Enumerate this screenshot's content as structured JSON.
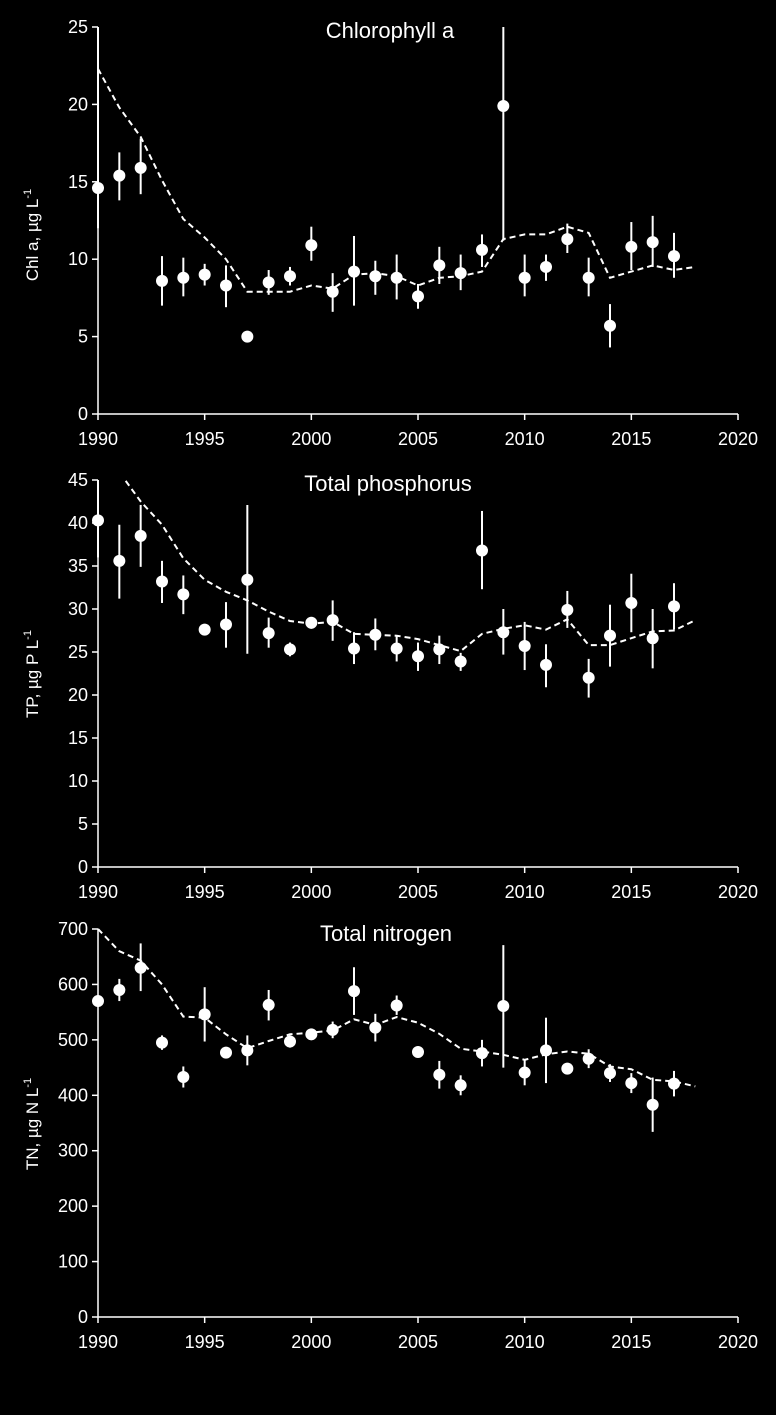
{
  "chart_data": [
    {
      "type": "scatter",
      "title": "Chlorophyll a",
      "ylabel": "Chl a, µg L",
      "ylabel_sup": "-1",
      "xlim": [
        1990,
        2020
      ],
      "ylim": [
        0,
        25
      ],
      "xticks": [
        1990,
        1995,
        2000,
        2005,
        2010,
        2015,
        2020
      ],
      "yticks": [
        0,
        5,
        10,
        15,
        20,
        25
      ],
      "points": [
        {
          "x": 1990,
          "y": 14.6,
          "lo": 12.0,
          "hi": 25.0
        },
        {
          "x": 1991,
          "y": 15.4,
          "lo": 13.8,
          "hi": 16.9
        },
        {
          "x": 1992,
          "y": 15.9,
          "lo": 14.2,
          "hi": 17.8
        },
        {
          "x": 1993,
          "y": 8.6,
          "lo": 7.0,
          "hi": 10.2
        },
        {
          "x": 1994,
          "y": 8.8,
          "lo": 7.6,
          "hi": 10.1
        },
        {
          "x": 1995,
          "y": 9.0,
          "lo": 8.3,
          "hi": 9.7
        },
        {
          "x": 1996,
          "y": 8.3,
          "lo": 6.9,
          "hi": 9.6
        },
        {
          "x": 1997,
          "y": 5.0,
          "lo": 4.7,
          "hi": 5.3
        },
        {
          "x": 1998,
          "y": 8.5,
          "lo": 7.7,
          "hi": 9.3
        },
        {
          "x": 1999,
          "y": 8.9,
          "lo": 8.3,
          "hi": 9.5
        },
        {
          "x": 2000,
          "y": 10.9,
          "lo": 9.9,
          "hi": 12.1
        },
        {
          "x": 2001,
          "y": 7.9,
          "lo": 6.6,
          "hi": 9.1
        },
        {
          "x": 2002,
          "y": 9.2,
          "lo": 7.0,
          "hi": 11.5
        },
        {
          "x": 2003,
          "y": 8.9,
          "lo": 7.7,
          "hi": 9.9
        },
        {
          "x": 2004,
          "y": 8.8,
          "lo": 7.4,
          "hi": 10.3
        },
        {
          "x": 2005,
          "y": 7.6,
          "lo": 6.8,
          "hi": 8.4
        },
        {
          "x": 2006,
          "y": 9.6,
          "lo": 8.4,
          "hi": 10.8
        },
        {
          "x": 2007,
          "y": 9.1,
          "lo": 8.0,
          "hi": 10.3
        },
        {
          "x": 2008,
          "y": 10.6,
          "lo": 9.5,
          "hi": 11.6
        },
        {
          "x": 2009,
          "y": 19.9,
          "lo": 11.2,
          "hi": 25.0
        },
        {
          "x": 2010,
          "y": 8.8,
          "lo": 7.6,
          "hi": 10.3
        },
        {
          "x": 2011,
          "y": 9.5,
          "lo": 8.6,
          "hi": 10.3
        },
        {
          "x": 2012,
          "y": 11.3,
          "lo": 10.4,
          "hi": 12.3
        },
        {
          "x": 2013,
          "y": 8.8,
          "lo": 7.6,
          "hi": 10.1
        },
        {
          "x": 2014,
          "y": 5.7,
          "lo": 4.3,
          "hi": 7.1
        },
        {
          "x": 2015,
          "y": 10.8,
          "lo": 9.3,
          "hi": 12.4
        },
        {
          "x": 2016,
          "y": 11.1,
          "lo": 9.5,
          "hi": 12.8
        },
        {
          "x": 2017,
          "y": 10.2,
          "lo": 8.8,
          "hi": 11.7
        }
      ],
      "trend": [
        {
          "x": 1990,
          "y": 22.3
        },
        {
          "x": 1991,
          "y": 19.8
        },
        {
          "x": 1992,
          "y": 17.9
        },
        {
          "x": 1993,
          "y": 15.1
        },
        {
          "x": 1994,
          "y": 12.6
        },
        {
          "x": 1995,
          "y": 11.4
        },
        {
          "x": 1996,
          "y": 10.0
        },
        {
          "x": 1997,
          "y": 7.9
        },
        {
          "x": 1998,
          "y": 7.9
        },
        {
          "x": 1999,
          "y": 7.9
        },
        {
          "x": 2000,
          "y": 8.3
        },
        {
          "x": 2001,
          "y": 8.1
        },
        {
          "x": 2002,
          "y": 9.0
        },
        {
          "x": 2003,
          "y": 9.1
        },
        {
          "x": 2004,
          "y": 8.9
        },
        {
          "x": 2005,
          "y": 8.3
        },
        {
          "x": 2006,
          "y": 8.8
        },
        {
          "x": 2007,
          "y": 8.9
        },
        {
          "x": 2008,
          "y": 9.2
        },
        {
          "x": 2009,
          "y": 11.3
        },
        {
          "x": 2010,
          "y": 11.6
        },
        {
          "x": 2011,
          "y": 11.6
        },
        {
          "x": 2012,
          "y": 12.1
        },
        {
          "x": 2013,
          "y": 11.7
        },
        {
          "x": 2014,
          "y": 8.8
        },
        {
          "x": 2015,
          "y": 9.2
        },
        {
          "x": 2016,
          "y": 9.6
        },
        {
          "x": 2017,
          "y": 9.3
        },
        {
          "x": 2018,
          "y": 9.5
        }
      ]
    },
    {
      "type": "scatter",
      "title": "Total phosphorus",
      "ylabel": "TP, µg P L",
      "ylabel_sup": "-1",
      "xlim": [
        1990,
        2020
      ],
      "ylim": [
        0,
        45
      ],
      "xticks": [
        1990,
        1995,
        2000,
        2005,
        2010,
        2015,
        2020
      ],
      "yticks": [
        0,
        5,
        10,
        15,
        20,
        25,
        30,
        35,
        40,
        45
      ],
      "points": [
        {
          "x": 1990,
          "y": 40.3,
          "lo": 36.0,
          "hi": 45.0
        },
        {
          "x": 1991,
          "y": 35.6,
          "lo": 31.2,
          "hi": 39.8
        },
        {
          "x": 1992,
          "y": 38.5,
          "lo": 34.9,
          "hi": 42.1
        },
        {
          "x": 1993,
          "y": 33.2,
          "lo": 30.7,
          "hi": 35.6
        },
        {
          "x": 1994,
          "y": 31.7,
          "lo": 29.4,
          "hi": 33.9
        },
        {
          "x": 1995,
          "y": 27.6,
          "lo": 27.0,
          "hi": 28.2
        },
        {
          "x": 1996,
          "y": 28.2,
          "lo": 25.5,
          "hi": 30.8
        },
        {
          "x": 1997,
          "y": 33.4,
          "lo": 24.8,
          "hi": 42.1
        },
        {
          "x": 1998,
          "y": 27.2,
          "lo": 25.5,
          "hi": 29.0
        },
        {
          "x": 1999,
          "y": 25.3,
          "lo": 24.5,
          "hi": 26.1
        },
        {
          "x": 2000,
          "y": 28.4,
          "lo": 27.7,
          "hi": 29.0
        },
        {
          "x": 2001,
          "y": 28.7,
          "lo": 26.3,
          "hi": 31.0
        },
        {
          "x": 2002,
          "y": 25.4,
          "lo": 23.6,
          "hi": 27.3
        },
        {
          "x": 2003,
          "y": 27.0,
          "lo": 25.2,
          "hi": 28.9
        },
        {
          "x": 2004,
          "y": 25.4,
          "lo": 23.9,
          "hi": 26.9
        },
        {
          "x": 2005,
          "y": 24.5,
          "lo": 22.8,
          "hi": 26.1
        },
        {
          "x": 2006,
          "y": 25.3,
          "lo": 23.6,
          "hi": 26.9
        },
        {
          "x": 2007,
          "y": 23.9,
          "lo": 22.8,
          "hi": 24.9
        },
        {
          "x": 2008,
          "y": 36.8,
          "lo": 32.3,
          "hi": 41.4
        },
        {
          "x": 2009,
          "y": 27.3,
          "lo": 24.7,
          "hi": 30.0
        },
        {
          "x": 2010,
          "y": 25.7,
          "lo": 22.9,
          "hi": 28.5
        },
        {
          "x": 2011,
          "y": 23.5,
          "lo": 20.9,
          "hi": 25.9
        },
        {
          "x": 2012,
          "y": 29.9,
          "lo": 27.8,
          "hi": 32.1
        },
        {
          "x": 2013,
          "y": 22.0,
          "lo": 19.7,
          "hi": 24.2
        },
        {
          "x": 2014,
          "y": 26.9,
          "lo": 23.3,
          "hi": 30.5
        },
        {
          "x": 2015,
          "y": 30.7,
          "lo": 27.3,
          "hi": 34.1
        },
        {
          "x": 2016,
          "y": 26.6,
          "lo": 23.1,
          "hi": 30.0
        },
        {
          "x": 2017,
          "y": 30.3,
          "lo": 27.6,
          "hi": 33.0
        }
      ],
      "trend": [
        {
          "x": 1991.3,
          "y": 44.9
        },
        {
          "x": 1992,
          "y": 42.5
        },
        {
          "x": 1993,
          "y": 39.8
        },
        {
          "x": 1994,
          "y": 35.9
        },
        {
          "x": 1995,
          "y": 33.4
        },
        {
          "x": 1996,
          "y": 32.0
        },
        {
          "x": 1997,
          "y": 31.0
        },
        {
          "x": 1998,
          "y": 29.7
        },
        {
          "x": 1999,
          "y": 28.6
        },
        {
          "x": 2000,
          "y": 28.3
        },
        {
          "x": 2001,
          "y": 28.5
        },
        {
          "x": 2002,
          "y": 27.1
        },
        {
          "x": 2003,
          "y": 27.0
        },
        {
          "x": 2004,
          "y": 26.9
        },
        {
          "x": 2005,
          "y": 26.5
        },
        {
          "x": 2006,
          "y": 25.8
        },
        {
          "x": 2007,
          "y": 25.1
        },
        {
          "x": 2008,
          "y": 27.1
        },
        {
          "x": 2009,
          "y": 27.7
        },
        {
          "x": 2010,
          "y": 28.1
        },
        {
          "x": 2011,
          "y": 27.6
        },
        {
          "x": 2012,
          "y": 28.8
        },
        {
          "x": 2013,
          "y": 25.8
        },
        {
          "x": 2014,
          "y": 25.8
        },
        {
          "x": 2015,
          "y": 26.6
        },
        {
          "x": 2016,
          "y": 27.4
        },
        {
          "x": 2017,
          "y": 27.5
        },
        {
          "x": 2018,
          "y": 28.7
        }
      ]
    },
    {
      "type": "scatter",
      "title": "Total nitrogen",
      "ylabel": "TN, µg N L",
      "ylabel_sup": "-1",
      "xlim": [
        1990,
        2020
      ],
      "ylim": [
        0,
        700
      ],
      "xticks": [
        1990,
        1995,
        2000,
        2005,
        2010,
        2015,
        2020
      ],
      "yticks": [
        0,
        100,
        200,
        300,
        400,
        500,
        600,
        700
      ],
      "points": [
        {
          "x": 1990,
          "y": 570,
          "lo": 560,
          "hi": 580
        },
        {
          "x": 1991,
          "y": 590,
          "lo": 570,
          "hi": 610
        },
        {
          "x": 1992,
          "y": 630,
          "lo": 588,
          "hi": 674
        },
        {
          "x": 1993,
          "y": 495,
          "lo": 482,
          "hi": 508
        },
        {
          "x": 1994,
          "y": 433,
          "lo": 414,
          "hi": 452
        },
        {
          "x": 1995,
          "y": 546,
          "lo": 497,
          "hi": 595
        },
        {
          "x": 1996,
          "y": 477,
          "lo": 468,
          "hi": 486
        },
        {
          "x": 1997,
          "y": 481,
          "lo": 454,
          "hi": 508
        },
        {
          "x": 1998,
          "y": 563,
          "lo": 535,
          "hi": 590
        },
        {
          "x": 1999,
          "y": 497,
          "lo": 486,
          "hi": 508
        },
        {
          "x": 2000,
          "y": 510,
          "lo": 500,
          "hi": 520
        },
        {
          "x": 2001,
          "y": 518,
          "lo": 503,
          "hi": 533
        },
        {
          "x": 2002,
          "y": 588,
          "lo": 545,
          "hi": 631
        },
        {
          "x": 2003,
          "y": 522,
          "lo": 497,
          "hi": 547
        },
        {
          "x": 2004,
          "y": 562,
          "lo": 545,
          "hi": 580
        },
        {
          "x": 2005,
          "y": 478,
          "lo": 472,
          "hi": 484
        },
        {
          "x": 2006,
          "y": 437,
          "lo": 412,
          "hi": 462
        },
        {
          "x": 2007,
          "y": 418,
          "lo": 400,
          "hi": 436
        },
        {
          "x": 2008,
          "y": 476,
          "lo": 452,
          "hi": 500
        },
        {
          "x": 2009,
          "y": 561,
          "lo": 450,
          "hi": 671
        },
        {
          "x": 2010,
          "y": 441,
          "lo": 418,
          "hi": 464
        },
        {
          "x": 2011,
          "y": 481,
          "lo": 422,
          "hi": 540
        },
        {
          "x": 2012,
          "y": 448,
          "lo": 444,
          "hi": 452
        },
        {
          "x": 2013,
          "y": 466,
          "lo": 449,
          "hi": 483
        },
        {
          "x": 2014,
          "y": 440,
          "lo": 424,
          "hi": 456
        },
        {
          "x": 2015,
          "y": 422,
          "lo": 404,
          "hi": 440
        },
        {
          "x": 2016,
          "y": 383,
          "lo": 334,
          "hi": 432
        },
        {
          "x": 2017,
          "y": 421,
          "lo": 398,
          "hi": 444
        }
      ],
      "trend": [
        {
          "x": 1990,
          "y": 700
        },
        {
          "x": 1991,
          "y": 660
        },
        {
          "x": 1992,
          "y": 643
        },
        {
          "x": 1993,
          "y": 600
        },
        {
          "x": 1994,
          "y": 542
        },
        {
          "x": 1995,
          "y": 540
        },
        {
          "x": 1996,
          "y": 510
        },
        {
          "x": 1997,
          "y": 485
        },
        {
          "x": 1998,
          "y": 498
        },
        {
          "x": 1999,
          "y": 510
        },
        {
          "x": 2000,
          "y": 513
        },
        {
          "x": 2001,
          "y": 517
        },
        {
          "x": 2002,
          "y": 537
        },
        {
          "x": 2003,
          "y": 527
        },
        {
          "x": 2004,
          "y": 541
        },
        {
          "x": 2005,
          "y": 531
        },
        {
          "x": 2006,
          "y": 511
        },
        {
          "x": 2007,
          "y": 484
        },
        {
          "x": 2008,
          "y": 479
        },
        {
          "x": 2009,
          "y": 473
        },
        {
          "x": 2010,
          "y": 464
        },
        {
          "x": 2011,
          "y": 474
        },
        {
          "x": 2012,
          "y": 479
        },
        {
          "x": 2013,
          "y": 475
        },
        {
          "x": 2014,
          "y": 452
        },
        {
          "x": 2015,
          "y": 447
        },
        {
          "x": 2016,
          "y": 428
        },
        {
          "x": 2017,
          "y": 425
        },
        {
          "x": 2018,
          "y": 416
        }
      ]
    }
  ]
}
